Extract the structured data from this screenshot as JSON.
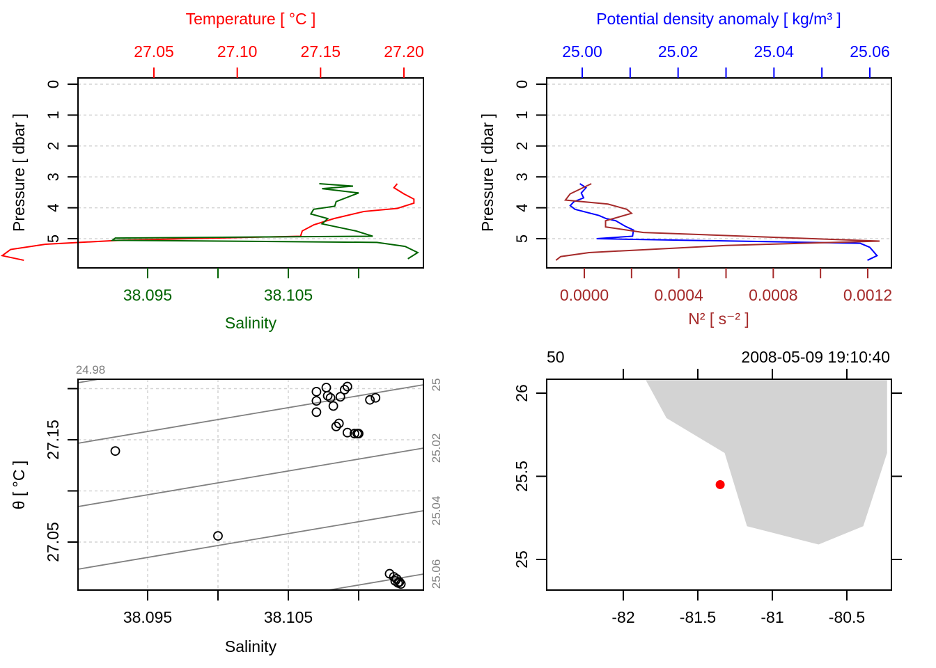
{
  "chart_data": [
    {
      "id": "profile_ts",
      "type": "line",
      "top_axis_label": "Temperature [ °C ]",
      "bottom_axis_label": "Salinity",
      "ylabel": "Pressure [ dbar ]",
      "y_ticks": [
        "0",
        "1",
        "2",
        "3",
        "4",
        "5"
      ],
      "ylim": [
        5.8,
        -0.2
      ],
      "temperature_ticks": [
        "27.05",
        "27.10",
        "27.15",
        "27.20"
      ],
      "temperature_tick_values": [
        27.05,
        27.1,
        27.15,
        27.2
      ],
      "salinity_ticks": [
        "38.095",
        "",
        "38.105",
        ""
      ],
      "salinity_tick_values": [
        38.095,
        38.1,
        38.105,
        38.11
      ],
      "grid": true,
      "colors": {
        "temperature": "#ff0000",
        "salinity": "#006400"
      },
      "series": [
        {
          "name": "Temperature",
          "axis": "top",
          "points": [
            [
              27.196,
              3.22
            ],
            [
              27.194,
              3.35
            ],
            [
              27.2,
              3.55
            ],
            [
              27.206,
              3.72
            ],
            [
              27.206,
              3.85
            ],
            [
              27.196,
              4.02
            ],
            [
              27.176,
              4.12
            ],
            [
              27.158,
              4.35
            ],
            [
              27.146,
              4.55
            ],
            [
              27.139,
              4.75
            ],
            [
              27.138,
              4.92
            ],
            [
              27.03,
              5.05
            ],
            [
              26.985,
              5.18
            ],
            [
              26.964,
              5.35
            ],
            [
              26.959,
              5.55
            ],
            [
              26.972,
              5.7
            ]
          ]
        },
        {
          "name": "Salinity",
          "axis": "bottom",
          "points": [
            [
              38.1072,
              3.22
            ],
            [
              38.1096,
              3.3
            ],
            [
              38.1074,
              3.38
            ],
            [
              38.11,
              3.52
            ],
            [
              38.1084,
              3.8
            ],
            [
              38.1083,
              3.95
            ],
            [
              38.1068,
              4.05
            ],
            [
              38.1066,
              4.2
            ],
            [
              38.1078,
              4.35
            ],
            [
              38.1074,
              4.52
            ],
            [
              38.1098,
              4.75
            ],
            [
              38.111,
              4.92
            ],
            [
              38.0927,
              4.98
            ],
            [
              38.0925,
              5.05
            ],
            [
              38.1113,
              5.12
            ],
            [
              38.1133,
              5.25
            ],
            [
              38.1142,
              5.45
            ],
            [
              38.1135,
              5.65
            ]
          ]
        }
      ]
    },
    {
      "id": "profile_density",
      "type": "line",
      "top_axis_label": "Potential density anomaly [ kg/m³ ]",
      "bottom_axis_label": "N² [ s⁻² ]",
      "ylabel": "Pressure [ dbar ]",
      "y_ticks": [
        "0",
        "1",
        "2",
        "3",
        "4",
        "5"
      ],
      "ylim": [
        5.8,
        -0.2
      ],
      "density_ticks": [
        "25.00",
        "",
        "25.02",
        "",
        "25.04",
        "",
        "25.06"
      ],
      "density_tick_values": [
        25.0,
        25.01,
        25.02,
        25.03,
        25.04,
        25.05,
        25.06
      ],
      "n2_ticks": [
        "0.0000",
        "",
        "0.0004",
        "",
        "0.0008",
        "",
        "0.0012"
      ],
      "n2_tick_values": [
        0.0,
        0.0002,
        0.0004,
        0.0006,
        0.0008,
        0.001,
        0.0012
      ],
      "grid": true,
      "colors": {
        "density": "#0000ff",
        "n2": "#a52a2a"
      },
      "series": [
        {
          "name": "Potential density anomaly",
          "axis": "top",
          "points": [
            [
              24.9995,
              3.22
            ],
            [
              25.0008,
              3.35
            ],
            [
              24.9998,
              3.52
            ],
            [
              25.0003,
              3.68
            ],
            [
              24.9983,
              3.8
            ],
            [
              24.9975,
              3.93
            ],
            [
              24.9985,
              4.05
            ],
            [
              25.0035,
              4.25
            ],
            [
              25.005,
              4.35
            ],
            [
              25.007,
              4.42
            ],
            [
              25.009,
              4.6
            ],
            [
              25.0107,
              4.72
            ],
            [
              25.0105,
              4.92
            ],
            [
              25.003,
              5.0
            ],
            [
              25.058,
              5.15
            ],
            [
              25.06,
              5.28
            ],
            [
              25.0615,
              5.55
            ],
            [
              25.0595,
              5.7
            ]
          ]
        },
        {
          "name": "N²",
          "axis": "bottom",
          "points": [
            [
              3e-05,
              3.22
            ],
            [
              -6e-05,
              3.55
            ],
            [
              -8e-05,
              3.75
            ],
            [
              0.0001,
              3.88
            ],
            [
              0.00018,
              4.05
            ],
            [
              0.0002,
              4.18
            ],
            [
              9e-05,
              4.42
            ],
            [
              9e-05,
              4.62
            ],
            [
              0.00025,
              4.8
            ],
            [
              0.00125,
              5.08
            ],
            [
              0.0006,
              5.22
            ],
            [
              2e-05,
              5.45
            ],
            [
              -0.0001,
              5.58
            ],
            [
              -0.00012,
              5.7
            ]
          ]
        }
      ]
    },
    {
      "id": "ts_diagram",
      "type": "scatter",
      "xlabel": "Salinity",
      "ylabel": "θ [ °C ]",
      "x_ticks": [
        "38.095",
        "",
        "38.105",
        ""
      ],
      "x_tick_values": [
        38.095,
        38.1,
        38.105,
        38.11
      ],
      "y_ticks": [
        "27.05",
        "",
        "27.15",
        ""
      ],
      "y_tick_values": [
        27.05,
        27.1,
        27.15,
        27.2
      ],
      "grid": true,
      "isopycnal_labels": [
        "24.98",
        "25",
        "25.02",
        "25.04",
        "25.06"
      ],
      "isopycnal_values": [
        24.98,
        25.0,
        25.02,
        25.04,
        25.06
      ],
      "points": [
        [
          38.0927,
          27.139
        ],
        [
          38.1,
          27.056
        ],
        [
          38.107,
          27.197
        ],
        [
          38.1077,
          27.201
        ],
        [
          38.1078,
          27.193
        ],
        [
          38.108,
          27.191
        ],
        [
          38.109,
          27.199
        ],
        [
          38.1092,
          27.202
        ],
        [
          38.1087,
          27.192
        ],
        [
          38.1082,
          27.183
        ],
        [
          38.107,
          27.188
        ],
        [
          38.107,
          27.177
        ],
        [
          38.1086,
          27.166
        ],
        [
          38.1084,
          27.163
        ],
        [
          38.1092,
          27.157
        ],
        [
          38.1097,
          27.156
        ],
        [
          38.1099,
          27.156
        ],
        [
          38.11,
          27.156
        ],
        [
          38.1108,
          27.189
        ],
        [
          38.1112,
          27.191
        ],
        [
          38.1122,
          27.019
        ],
        [
          38.1125,
          27.016
        ],
        [
          38.1127,
          27.014
        ],
        [
          38.1129,
          27.011
        ],
        [
          38.113,
          27.009
        ],
        [
          38.1128,
          27.01
        ],
        [
          38.1126,
          27.012
        ]
      ]
    },
    {
      "id": "station_map",
      "type": "scatter",
      "xlabel": "",
      "ylabel": "",
      "x_ticks": [
        "-82",
        "-81.5",
        "-81",
        "-80.5"
      ],
      "x_tick_values": [
        -82,
        -81.5,
        -81,
        -80.5
      ],
      "y_ticks": [
        "25",
        "25.5",
        "26"
      ],
      "y_tick_values": [
        25,
        25.5,
        26
      ],
      "top_left_label": "50",
      "top_right_label": "2008-05-09 19:10:40",
      "land_polygon": [
        [
          -81.85,
          26.08
        ],
        [
          -81.71,
          25.85
        ],
        [
          -81.32,
          25.64
        ],
        [
          -81.17,
          25.2
        ],
        [
          -80.69,
          25.09
        ],
        [
          -80.39,
          25.2
        ],
        [
          -80.23,
          25.64
        ],
        [
          -80.23,
          26.08
        ]
      ],
      "station": {
        "lon": -81.35,
        "lat": 25.45
      },
      "colors": {
        "land": "#d3d3d3",
        "station": "#ff0000"
      }
    }
  ]
}
